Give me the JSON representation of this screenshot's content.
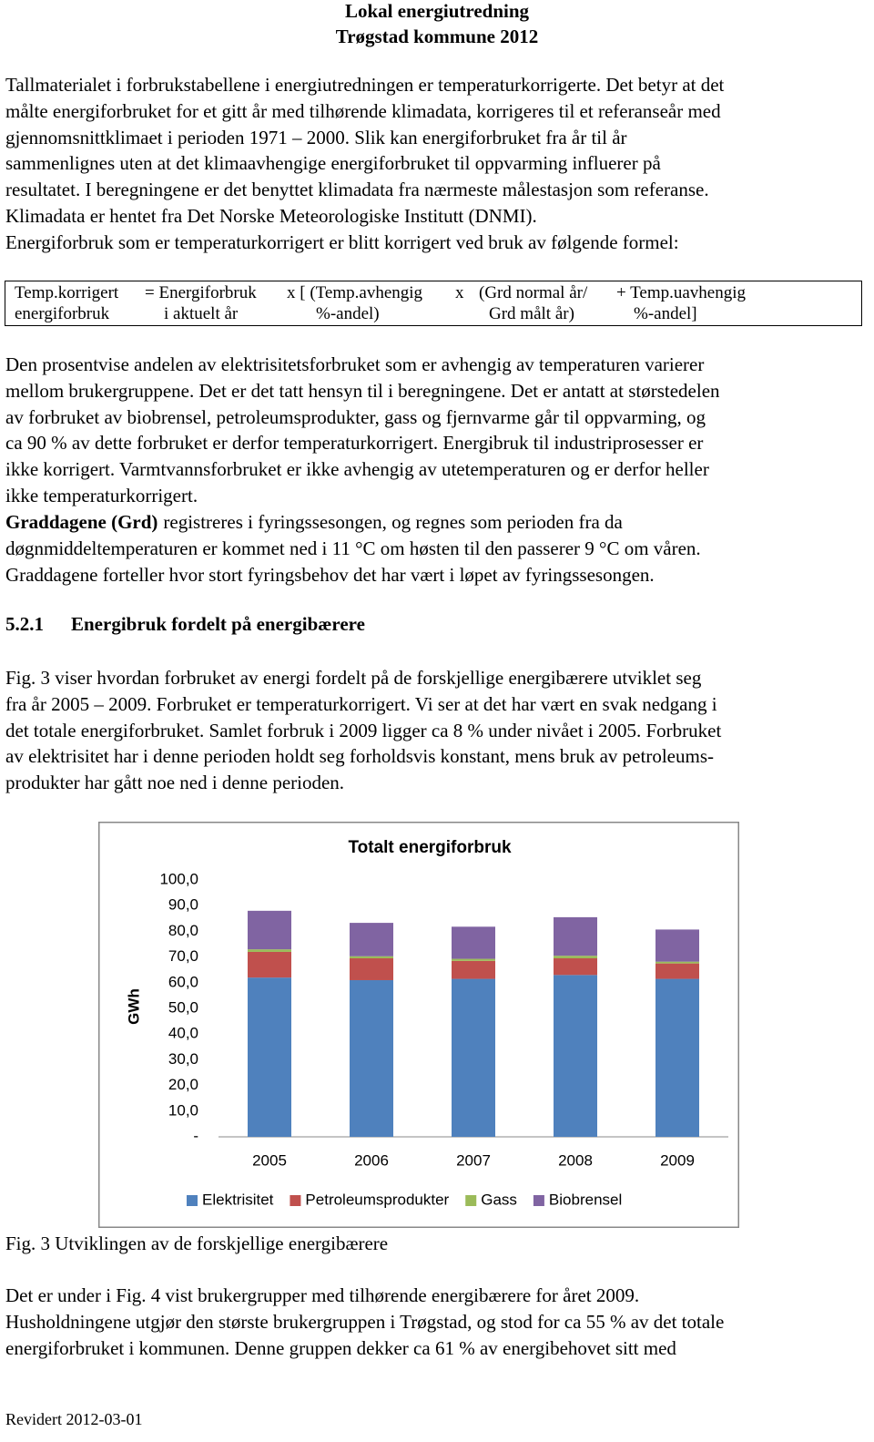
{
  "header": {
    "title": "Lokal energiutredning",
    "subtitle": "Trøgstad kommune 2012"
  },
  "intro": {
    "lines": [
      "Tallmaterialet i forbrukstabellene i energiutredningen er temperaturkorrigerte. Det betyr at det",
      "målte energiforbruket for et gitt år med tilhørende klimadata, korrigeres til et referanseår med",
      "gjennomsnittklimaet i perioden 1971 – 2000. Slik kan energiforbruket fra år til år",
      "sammenlignes uten at det klimaavhengige energiforbruket til oppvarming influerer på",
      "resultatet. I beregningene er det benyttet klimadata fra nærmeste målestasjon som referanse.",
      "Klimadata er hentet fra Det Norske Meteorologiske Institutt (DNMI).",
      "Energiforbruk som er temperaturkorrigert er blitt korrigert ved bruk av følgende formel:"
    ]
  },
  "formula": {
    "row1": [
      "Temp.korrigert",
      "= Energiforbruk",
      "x [ (Temp.avhengig",
      "x",
      "(Grd normal år/",
      "+ Temp.uavhengig"
    ],
    "row2": [
      "energiforbruk",
      "i aktuelt år",
      "%-andel)",
      "Grd målt år)",
      "%-andel]"
    ]
  },
  "share": {
    "lines": [
      "Den prosentvise andelen av elektrisitetsforbruket som er avhengig av temperaturen varierer",
      "mellom brukergruppene. Det er det tatt hensyn til i beregningene. Det er antatt at størstedelen",
      "av forbruket av biobrensel, petroleumsprodukter, gass og fjernvarme går til oppvarming, og",
      "ca 90 % av dette forbruket er derfor temperaturkorrigert. Energibruk til industriprosesser er",
      "ikke korrigert. Varmtvannsforbruket er ikke avhengig av utetemperaturen og er derfor heller",
      "ikke temperaturkorrigert."
    ]
  },
  "degree_days": {
    "term": "Graddagene (Grd)",
    "lines": [
      "registreres i fyringssesongen, og regnes som perioden fra da",
      "døgnmiddeltemperaturen er kommet ned i 11 °C om høsten til den passerer 9 °C om våren.",
      "Graddagene forteller hvor stort fyringsbehov det har vært i løpet av fyringssesongen."
    ]
  },
  "section": {
    "number": "5.2.1",
    "title": "Energibruk fordelt på energibærere"
  },
  "fig_text": {
    "lines": [
      "Fig. 3 viser hvordan forbruket av energi fordelt på de forskjellige energibærere utviklet seg",
      "fra år 2005 – 2009. Forbruket er temperaturkorrigert. Vi ser at det har vært en svak nedgang i",
      "det totale energiforbruket. Samlet forbruk i 2009 ligger ca 8 % under nivået i 2005. Forbruket",
      "av elektrisitet har i denne perioden holdt seg forholdsvis konstant, mens bruk av petroleums-",
      "produkter har gått noe ned i denne perioden."
    ]
  },
  "chart_data": {
    "type": "stacked_bar",
    "title": "Totalt energiforbruk",
    "y_label": "GWh",
    "categories": [
      "2005",
      "2006",
      "2007",
      "2008",
      "2009"
    ],
    "series": [
      {
        "name": "Elektrisitet",
        "color": "#4f81bd",
        "values": [
          62,
          61,
          61.5,
          63,
          61.5
        ]
      },
      {
        "name": "Petroleumsprodukter",
        "color": "#c0504d",
        "values": [
          10,
          8.5,
          7,
          6.5,
          6
        ]
      },
      {
        "name": "Gass",
        "color": "#9bbb59",
        "values": [
          1,
          0.8,
          0.8,
          1,
          0.7
        ]
      },
      {
        "name": "Biobrensel",
        "color": "#8064a2",
        "values": [
          15,
          13,
          12.5,
          15,
          12.5
        ]
      }
    ],
    "ylim": [
      0,
      100
    ],
    "yticks": [
      {
        "value": 0,
        "label": "-"
      },
      {
        "value": 10,
        "label": "10,0"
      },
      {
        "value": 20,
        "label": "20,0"
      },
      {
        "value": 30,
        "label": "30,0"
      },
      {
        "value": 40,
        "label": "40,0"
      },
      {
        "value": 50,
        "label": "50,0"
      },
      {
        "value": 60,
        "label": "60,0"
      },
      {
        "value": 70,
        "label": "70,0"
      },
      {
        "value": 80,
        "label": "80,0"
      },
      {
        "value": 90,
        "label": "90,0"
      },
      {
        "value": 100,
        "label": "100,0"
      }
    ],
    "grid": false,
    "legend": "bottom"
  },
  "caption": "Fig. 3 Utviklingen av de forskjellige energibærere",
  "outro": {
    "lines": [
      "Det er under i Fig. 4 vist brukergrupper med tilhørende energibærere for året 2009.",
      "Husholdningene utgjør den største brukergruppen i Trøgstad, og stod for ca 55 % av det totale",
      "energiforbruket i kommunen. Denne gruppen dekker ca 61 % av energibehovet sitt med"
    ]
  },
  "footer": "Revidert 2012-03-01"
}
